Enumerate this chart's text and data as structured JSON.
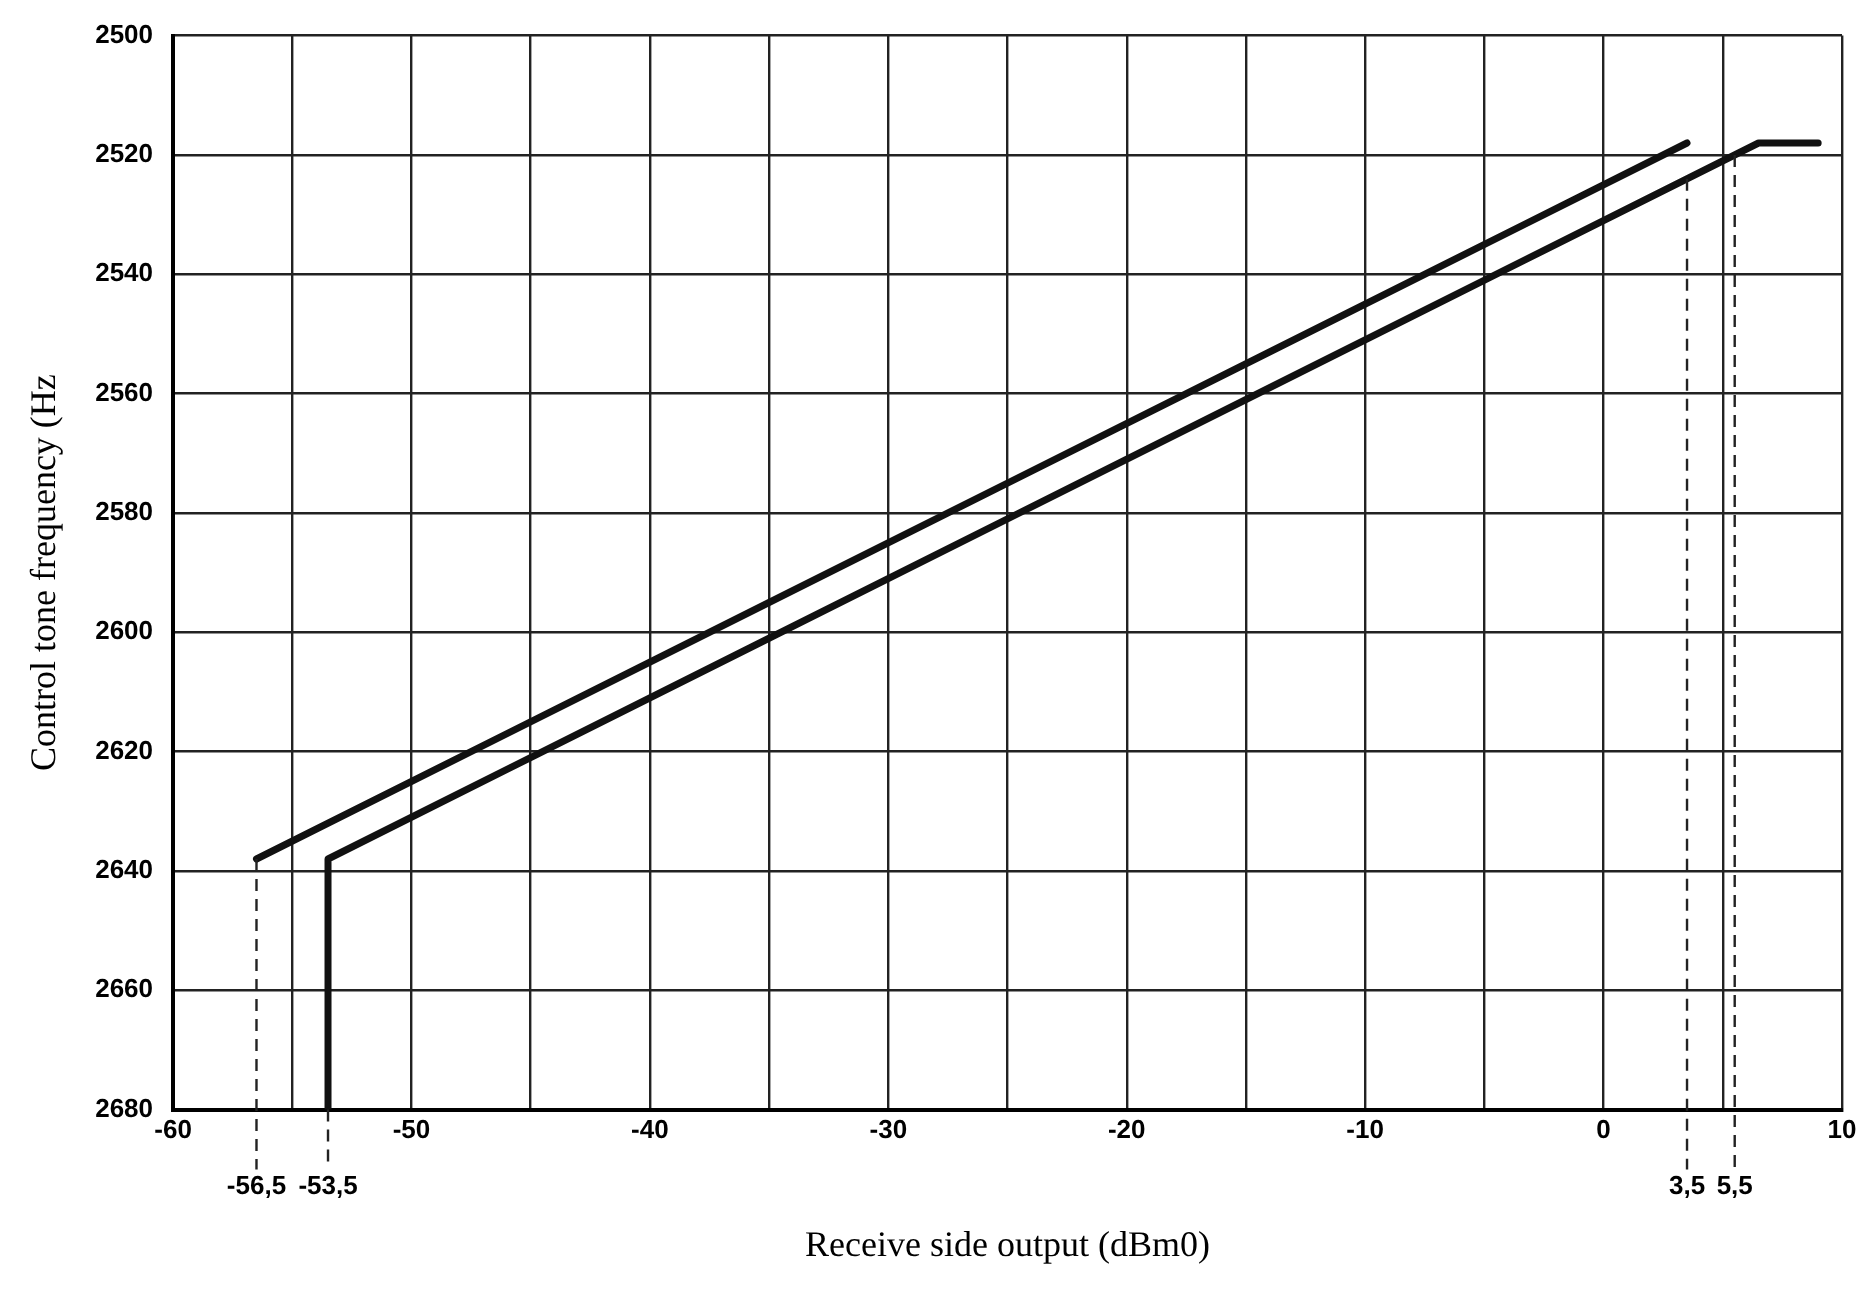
{
  "chart_data": {
    "type": "line",
    "xlabel": "Receive side output (dBm0)",
    "ylabel": "Control tone frequency (Hz",
    "series": [
      {
        "color": "#111111",
        "x": [
          -56.5,
          3.5
        ],
        "values": [
          2638,
          2518
        ]
      },
      {
        "color": "#111111",
        "x": [
          -53.5,
          -53.5,
          6.5,
          9
        ],
        "values": [
          2680,
          2638,
          2518,
          2518
        ]
      }
    ],
    "xlim": [
      -60,
      10
    ],
    "xticks": [
      -60,
      {
        "value": -55,
        "label": null
      },
      -50,
      {
        "value": -45,
        "label": null
      },
      -40,
      {
        "value": -35,
        "label": null
      },
      -30,
      {
        "value": -25,
        "label": null
      },
      -20,
      {
        "value": -15,
        "label": null
      },
      -10,
      {
        "value": -5,
        "label": null
      },
      0,
      {
        "value": 5,
        "label": null
      },
      10
    ],
    "ylim": [
      2680,
      2500
    ],
    "yticks": [
      2500,
      2520,
      2540,
      2560,
      2580,
      2600,
      2620,
      2640,
      2660,
      2680
    ],
    "ref_lines": [
      {
        "axis": "x",
        "value": -56.5,
        "label": "-56,5",
        "line_style": "dashed"
      },
      {
        "axis": "x",
        "value": -53.5,
        "label": "-53,5",
        "line_style": "dashed"
      },
      {
        "axis": "x",
        "value": 3.5,
        "label": "3,5",
        "line_style": "dashed"
      },
      {
        "axis": "x",
        "value": 5.5,
        "label": "5,5",
        "line_style": "dashed"
      }
    ],
    "grid": true,
    "legend": false,
    "marker": "none",
    "line_style": "solid"
  }
}
